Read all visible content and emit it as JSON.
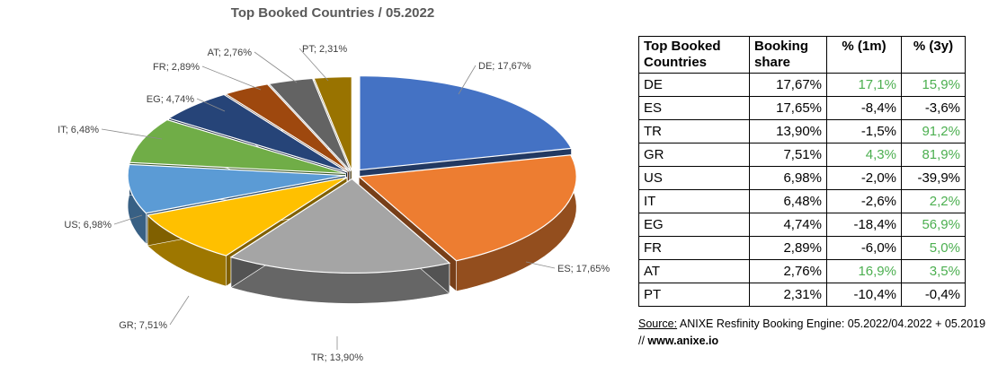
{
  "title": "Top Booked Countries / 05.2022",
  "chart_data": {
    "type": "pie",
    "title": "Top Booked Countries / 05.2022",
    "slices": [
      {
        "label": "DE",
        "value": 17.67,
        "text": "DE; 17,67%",
        "color": "#4472C4"
      },
      {
        "label": "ES",
        "value": 17.65,
        "text": "ES; 17,65%",
        "color": "#ED7D31"
      },
      {
        "label": "TR",
        "value": 13.9,
        "text": "TR; 13,90%",
        "color": "#A5A5A5"
      },
      {
        "label": "GR",
        "value": 7.51,
        "text": "GR; 7,51%",
        "color": "#FFC000"
      },
      {
        "label": "US",
        "value": 6.98,
        "text": "US; 6,98%",
        "color": "#5B9BD5"
      },
      {
        "label": "IT",
        "value": 6.48,
        "text": "IT; 6,48%",
        "color": "#70AD47"
      },
      {
        "label": "EG",
        "value": 4.74,
        "text": "EG; 4,74%",
        "color": "#264478"
      },
      {
        "label": "FR",
        "value": 2.89,
        "text": "FR; 2,89%",
        "color": "#9E480E"
      },
      {
        "label": "AT",
        "value": 2.76,
        "text": "AT; 2,76%",
        "color": "#636363"
      },
      {
        "label": "PT",
        "value": 2.31,
        "text": "PT; 2,31%",
        "color": "#997300"
      }
    ]
  },
  "table": {
    "headers": [
      "Top Booked Countries",
      "Booking share",
      "% (1m)",
      "% (3y)"
    ],
    "rows": [
      {
        "country": "DE",
        "share": "17,67%",
        "m1": "17,1%",
        "y3": "15,9%",
        "m1_pos": true,
        "y3_pos": true
      },
      {
        "country": "ES",
        "share": "17,65%",
        "m1": "-8,4%",
        "y3": "-3,6%",
        "m1_pos": false,
        "y3_pos": false
      },
      {
        "country": "TR",
        "share": "13,90%",
        "m1": "-1,5%",
        "y3": "91,2%",
        "m1_pos": false,
        "y3_pos": true
      },
      {
        "country": "GR",
        "share": "7,51%",
        "m1": "4,3%",
        "y3": "81,9%",
        "m1_pos": true,
        "y3_pos": true
      },
      {
        "country": "US",
        "share": "6,98%",
        "m1": "-2,0%",
        "y3": "-39,9%",
        "m1_pos": false,
        "y3_pos": false
      },
      {
        "country": "IT",
        "share": "6,48%",
        "m1": "-2,6%",
        "y3": "2,2%",
        "m1_pos": false,
        "y3_pos": true
      },
      {
        "country": "EG",
        "share": "4,74%",
        "m1": "-18,4%",
        "y3": "56,9%",
        "m1_pos": false,
        "y3_pos": true
      },
      {
        "country": "FR",
        "share": "2,89%",
        "m1": "-6,0%",
        "y3": "5,0%",
        "m1_pos": false,
        "y3_pos": true
      },
      {
        "country": "AT",
        "share": "2,76%",
        "m1": "16,9%",
        "y3": "3,5%",
        "m1_pos": true,
        "y3_pos": true
      },
      {
        "country": "PT",
        "share": "2,31%",
        "m1": "-10,4%",
        "y3": "-0,4%",
        "m1_pos": false,
        "y3_pos": false
      }
    ],
    "positive_color": "#4CAF50"
  },
  "source": {
    "label": "Source:",
    "text": " ANIXE Resfinity Booking Engine: 05.2022/04.2022 + 05.2019 // ",
    "site": "www.anixe.io"
  }
}
